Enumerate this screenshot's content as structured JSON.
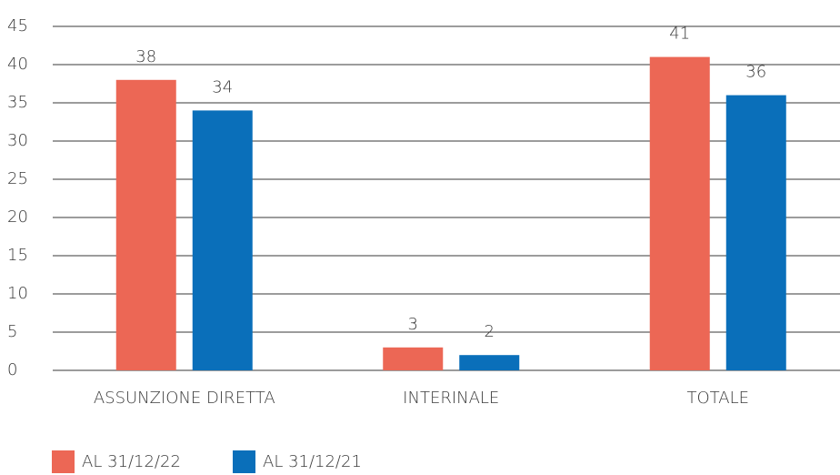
{
  "chart_data": {
    "type": "bar",
    "categories": [
      "ASSUNZIONE DIRETTA",
      "INTERINALE",
      "TOTALE"
    ],
    "series": [
      {
        "name": "AL 31/12/22",
        "color": "#ec6755",
        "values": [
          38,
          3,
          41
        ]
      },
      {
        "name": "AL 31/12/21",
        "color": "#0a6fba",
        "values": [
          34,
          2,
          36
        ]
      }
    ],
    "ylim": [
      0,
      45
    ],
    "yticks": [
      0,
      5,
      10,
      15,
      20,
      25,
      30,
      35,
      40,
      45
    ],
    "grid": true,
    "legend": "bottom-left"
  }
}
